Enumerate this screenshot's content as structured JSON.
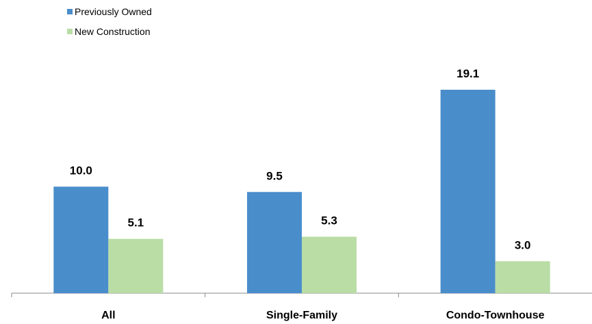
{
  "chart_data": {
    "type": "bar",
    "title": "",
    "xlabel": "",
    "ylabel": "",
    "categories": [
      "All",
      "Single-Family",
      "Condo-Townhouse"
    ],
    "series": [
      {
        "name": "Previously Owned",
        "color": "#4A8DCB",
        "values": [
          10.0,
          9.5,
          19.1
        ],
        "labels": [
          "10.0",
          "9.5",
          "19.1"
        ]
      },
      {
        "name": "New Construction",
        "color": "#B9DDA5",
        "values": [
          5.1,
          5.3,
          3.0
        ],
        "labels": [
          "5.1",
          "5.3",
          "3.0"
        ]
      }
    ],
    "ylim": [
      0,
      21
    ],
    "grid": false,
    "legend_position": "top-left",
    "axis_color": "#888888"
  }
}
